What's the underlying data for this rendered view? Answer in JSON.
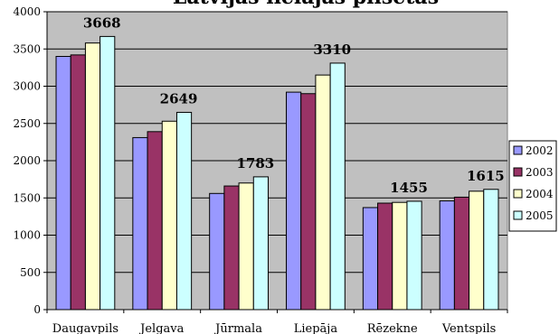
{
  "colors": {
    "plot_bg": "#c0c0c0",
    "series": [
      "#9999ff",
      "#993366",
      "#ffffcc",
      "#ccffff"
    ]
  },
  "chart_data": {
    "type": "bar",
    "title": "Latvijas lielājās pilsētas",
    "categories": [
      "Daugavpils",
      "Jelgava",
      "Jūrmala",
      "Liepāja",
      "Rēzekne",
      "Ventspils"
    ],
    "series": [
      {
        "name": "2002",
        "values": [
          3400,
          2310,
          1560,
          2920,
          1370,
          1460
        ]
      },
      {
        "name": "2003",
        "values": [
          3420,
          2390,
          1660,
          2900,
          1430,
          1510
        ]
      },
      {
        "name": "2004",
        "values": [
          3580,
          2530,
          1700,
          3150,
          1440,
          1590
        ]
      },
      {
        "name": "2005",
        "values": [
          3668,
          2649,
          1783,
          3310,
          1455,
          1615
        ]
      }
    ],
    "data_labels": [
      "3668",
      "2649",
      "1783",
      "3310",
      "1455",
      "1615"
    ],
    "ylim": [
      0,
      4000
    ],
    "yticks": [
      "0",
      "500",
      "1000",
      "1500",
      "2000",
      "2500",
      "3000",
      "3500",
      "4000"
    ],
    "grid": true,
    "legend_position": "right"
  }
}
